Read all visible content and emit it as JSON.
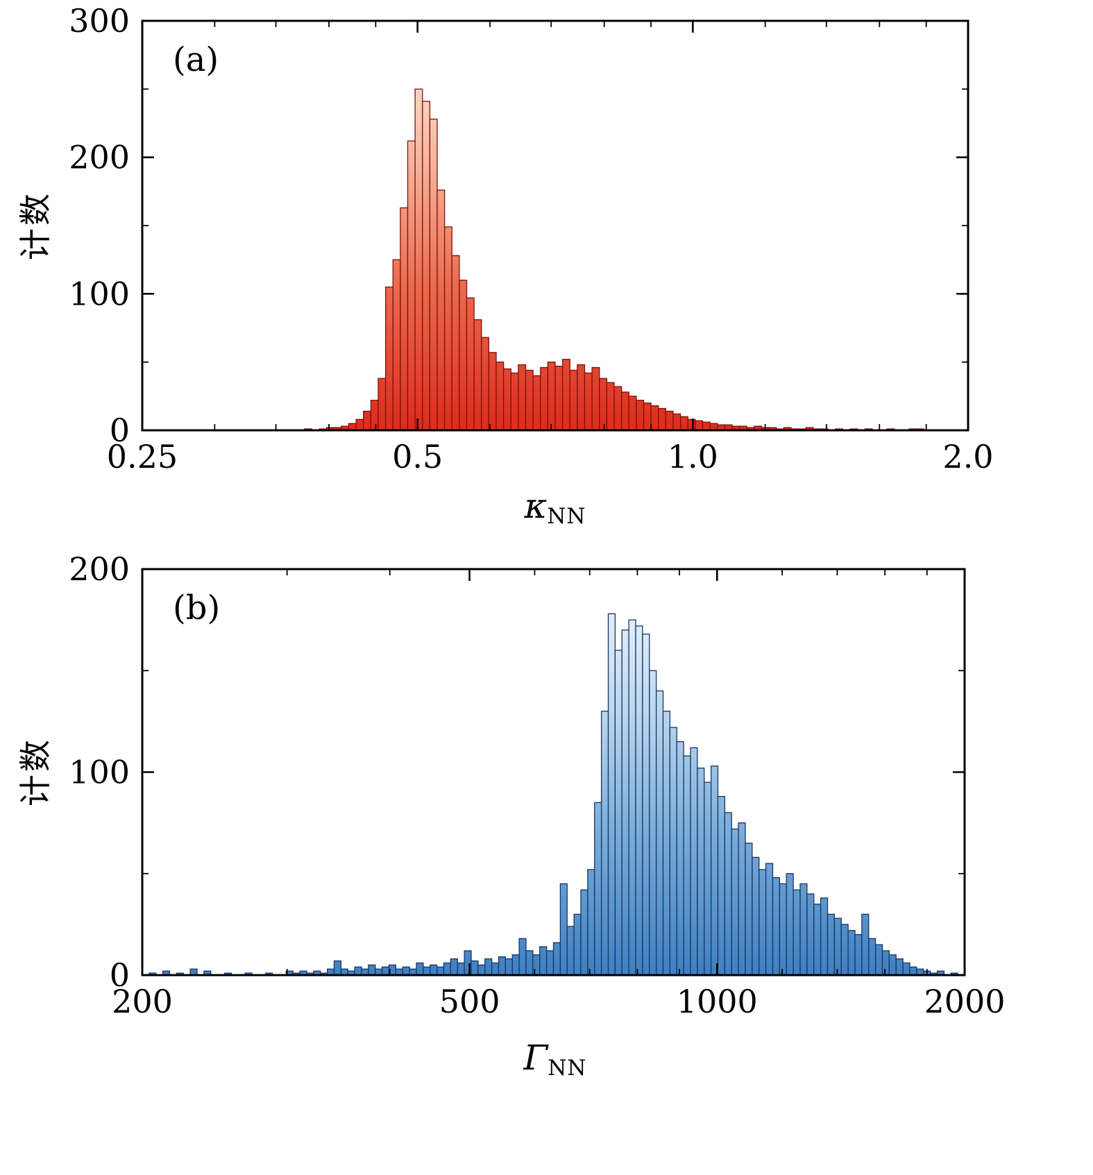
{
  "chart_data": [
    {
      "id": "panel-a",
      "type": "bar",
      "panel_label": "(a)",
      "title": "",
      "xlabel_symbol": "κ",
      "xlabel_sub": "NN",
      "ylabel": "计数",
      "x_scale": "log",
      "xlim": [
        0.25,
        2.0
      ],
      "ylim": [
        0,
        300
      ],
      "xticks": [
        0.25,
        0.5,
        1.0,
        2.0
      ],
      "xtick_labels": [
        "0.25",
        "0.5",
        "1.0",
        "2.0"
      ],
      "xminor": [
        0.3,
        0.35,
        0.4,
        0.45,
        0.6,
        0.7,
        0.8,
        0.9,
        1.2,
        1.4,
        1.6,
        1.8
      ],
      "yticks": [
        0,
        100,
        200,
        300
      ],
      "yminor": [
        50,
        150,
        250
      ],
      "grid": false,
      "axis_color": "#000000",
      "bar_edge": "#7c120c",
      "gradient": [
        [
          "0",
          "#dd2b1c"
        ],
        [
          "0.35",
          "#ea6a4e"
        ],
        [
          "0.65",
          "#f5b49b"
        ],
        [
          "1",
          "#fdf3e6"
        ]
      ],
      "counts": [
        0,
        0,
        0,
        0,
        0,
        0,
        0,
        0,
        0,
        0,
        0,
        0,
        0,
        0,
        0,
        0,
        0,
        0,
        0,
        0,
        0,
        0,
        1,
        0,
        1,
        2,
        2,
        3,
        5,
        8,
        14,
        22,
        38,
        105,
        125,
        163,
        212,
        250,
        241,
        228,
        176,
        149,
        128,
        110,
        97,
        81,
        68,
        57,
        50,
        45,
        42,
        48,
        44,
        40,
        46,
        50,
        47,
        52,
        44,
        48,
        42,
        46,
        38,
        35,
        32,
        28,
        25,
        22,
        20,
        18,
        16,
        14,
        12,
        10,
        8,
        7,
        6,
        5,
        4,
        4,
        3,
        3,
        2,
        3,
        2,
        2,
        1,
        2,
        1,
        1,
        2,
        1,
        1,
        0,
        1,
        0,
        1,
        0,
        1,
        0,
        0,
        1,
        0,
        0,
        1,
        1,
        0,
        0,
        0,
        0,
        0,
        0
      ]
    },
    {
      "id": "panel-b",
      "type": "bar",
      "panel_label": "(b)",
      "title": "",
      "xlabel_symbol": "Γ",
      "xlabel_sub": "NN",
      "ylabel": "计数",
      "x_scale": "log",
      "xlim": [
        200,
        2000
      ],
      "ylim": [
        0,
        200
      ],
      "xticks": [
        200,
        500,
        1000,
        2000
      ],
      "xtick_labels": [
        "200",
        "500",
        "1000",
        "2000"
      ],
      "xminor": [
        300,
        400,
        600,
        700,
        800,
        900,
        1200,
        1400,
        1600,
        1800
      ],
      "yticks": [
        0,
        100,
        200
      ],
      "yminor": [
        50,
        150
      ],
      "grid": false,
      "axis_color": "#000000",
      "bar_edge": "#173563",
      "gradient": [
        [
          "0",
          "#3f7fc1"
        ],
        [
          "0.35",
          "#7aadd9"
        ],
        [
          "0.65",
          "#bcd7ee"
        ],
        [
          "1",
          "#f4faff"
        ]
      ],
      "counts": [
        0,
        1,
        0,
        2,
        0,
        1,
        0,
        3,
        0,
        2,
        0,
        0,
        1,
        0,
        0,
        1,
        0,
        0,
        1,
        0,
        0,
        2,
        1,
        2,
        1,
        2,
        1,
        3,
        7,
        3,
        2,
        4,
        3,
        5,
        3,
        4,
        5,
        3,
        4,
        3,
        6,
        4,
        5,
        4,
        6,
        8,
        6,
        12,
        7,
        5,
        8,
        6,
        9,
        8,
        10,
        18,
        12,
        10,
        14,
        12,
        16,
        45,
        24,
        30,
        42,
        52,
        85,
        130,
        178,
        160,
        170,
        175,
        172,
        168,
        150,
        140,
        130,
        122,
        115,
        108,
        112,
        102,
        95,
        103,
        88,
        80,
        72,
        75,
        65,
        58,
        52,
        55,
        48,
        45,
        50,
        42,
        45,
        40,
        35,
        38,
        30,
        28,
        25,
        22,
        20,
        30,
        18,
        15,
        12,
        10,
        8,
        6,
        4,
        3,
        2,
        1,
        2,
        0,
        1,
        0
      ]
    }
  ]
}
